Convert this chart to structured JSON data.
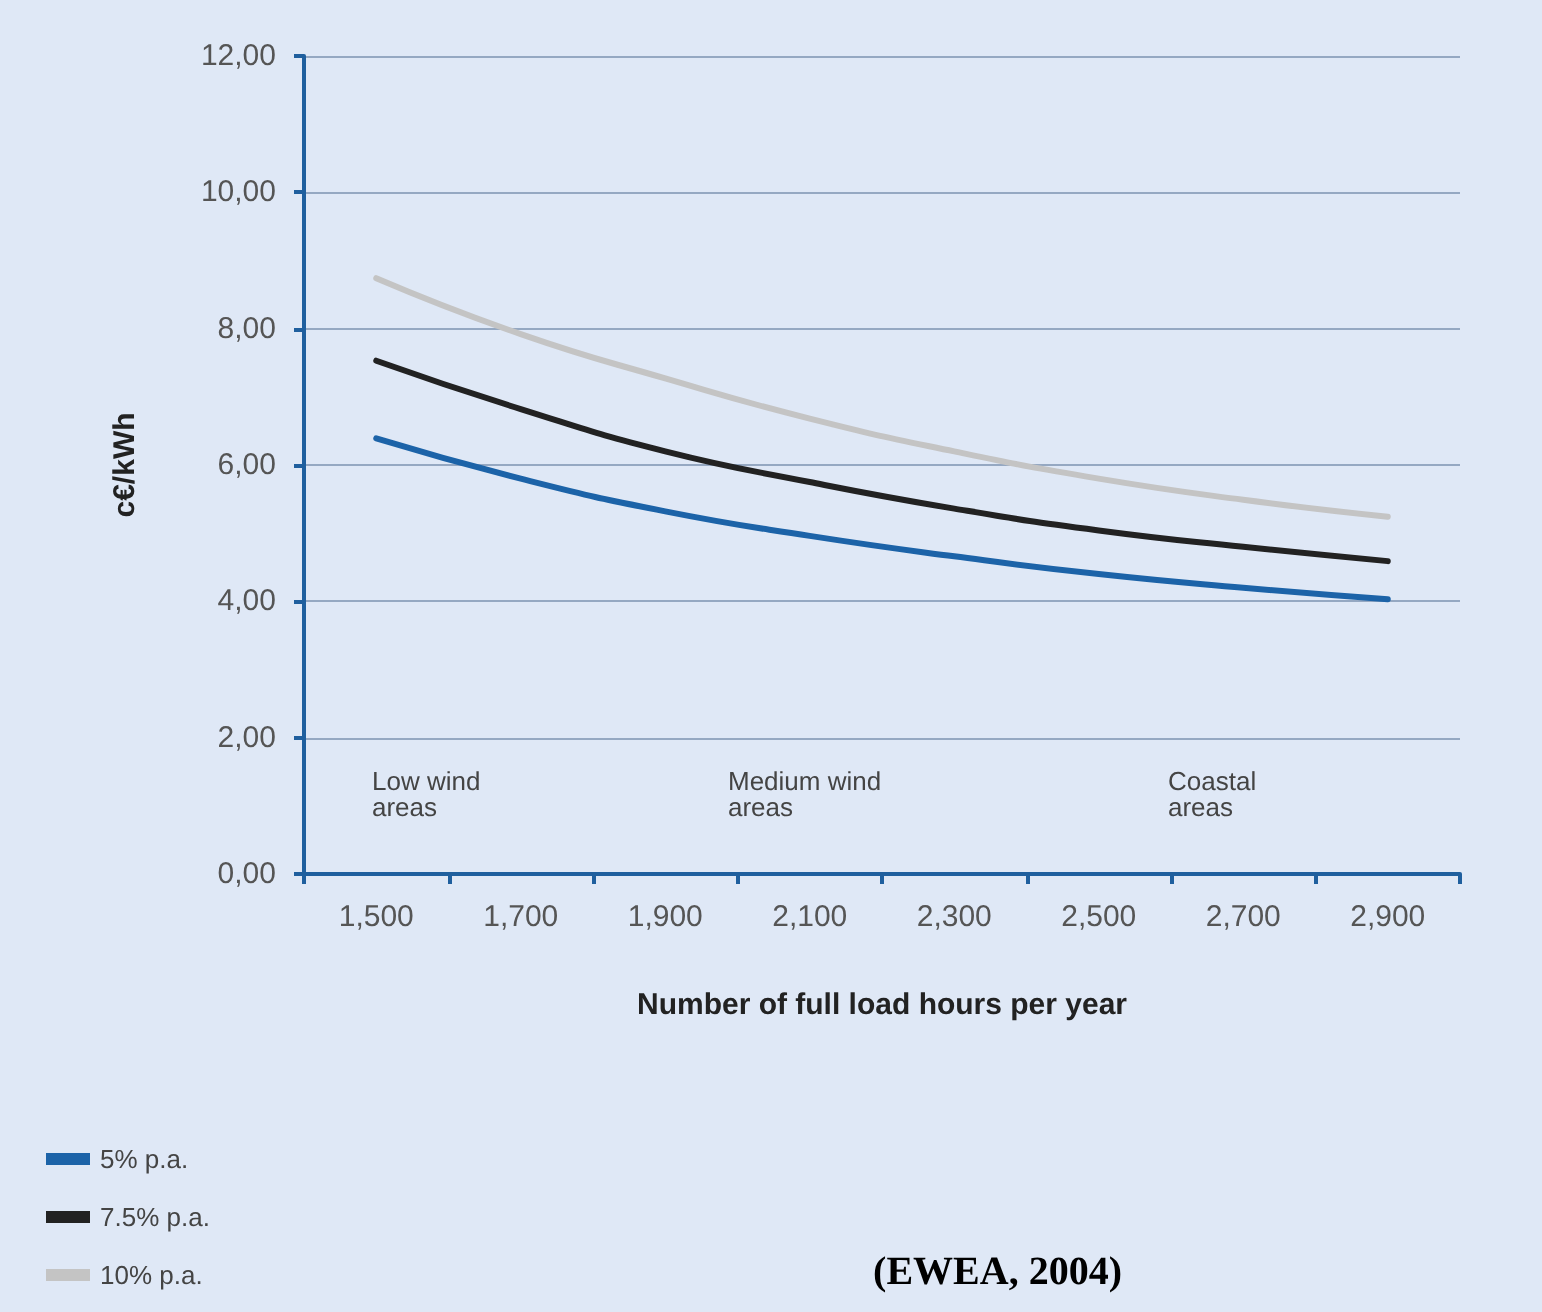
{
  "chart_data": {
    "type": "line",
    "ylabel": "c€/kWh",
    "xlabel": "Number of full load hours per year",
    "categories": [
      "1,500",
      "1,700",
      "1,900",
      "2,100",
      "2,300",
      "2,500",
      "2,700",
      "2,900"
    ],
    "series": [
      {
        "name": "5% p.a.",
        "color": "#1c63a8",
        "values": [
          6.39,
          5.8,
          5.32,
          4.96,
          4.66,
          4.4,
          4.2,
          4.03
        ]
      },
      {
        "name": "7.5% p.a.",
        "color": "#222222",
        "values": [
          7.53,
          6.82,
          6.2,
          5.75,
          5.36,
          5.04,
          4.8,
          4.59
        ]
      },
      {
        "name": "10% p.a.",
        "color": "#c4c4c4",
        "values": [
          8.74,
          7.92,
          7.27,
          6.68,
          6.2,
          5.8,
          5.49,
          5.24
        ]
      }
    ],
    "ylim": [
      0,
      12
    ],
    "yticks": [
      {
        "value": 0,
        "label": "0,00"
      },
      {
        "value": 2,
        "label": "2,00"
      },
      {
        "value": 4,
        "label": "4,00"
      },
      {
        "value": 6,
        "label": "6,00"
      },
      {
        "value": 8,
        "label": "8,00"
      },
      {
        "value": 10,
        "label": "10,00"
      },
      {
        "value": 12,
        "label": "12,00"
      }
    ],
    "grid": "y",
    "legend": "bottom left",
    "marker": "none",
    "line_style": "solid",
    "annotations": [
      "Low wind\nareas",
      "Medium wind\nareas",
      "Coastal\nareas",
      "(EWEA, 2004)"
    ]
  }
}
